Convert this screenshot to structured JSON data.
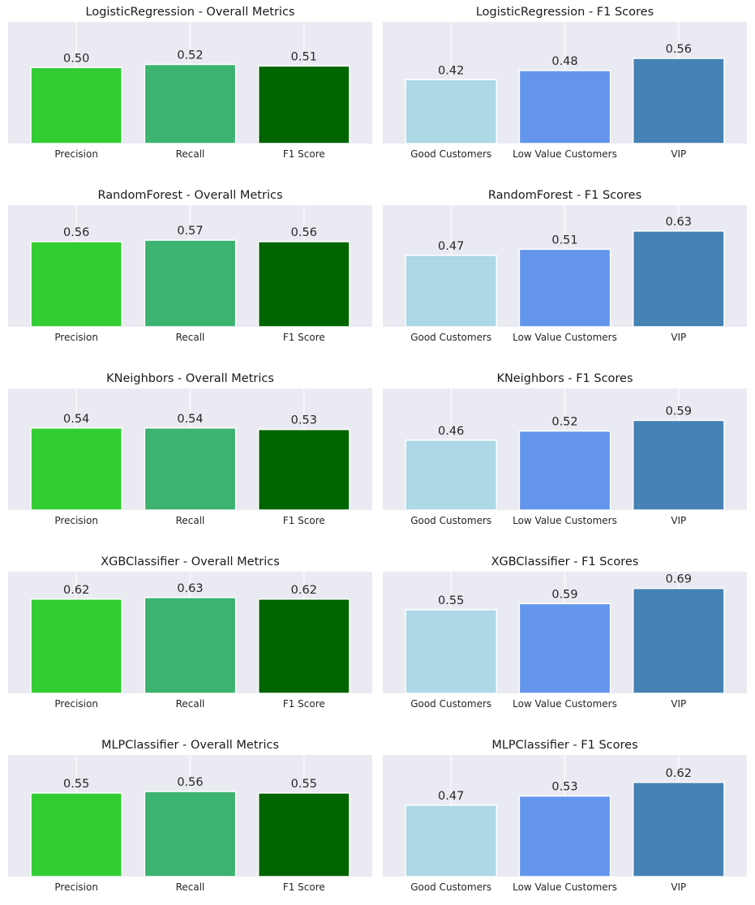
{
  "colors": {
    "plot_background": "#eaeaf2",
    "grid": "#ffffff",
    "metrics": [
      "#32cd32",
      "#3cb371",
      "#006400"
    ],
    "segments": [
      "#add8e6",
      "#6495ed",
      "#4682b4"
    ]
  },
  "chart_data": [
    {
      "type": "bar",
      "title": "LogisticRegression - Overall Metrics",
      "categories": [
        "Precision",
        "Recall",
        "F1 Score"
      ],
      "values": [
        0.5,
        0.52,
        0.51
      ],
      "value_labels": [
        "0.50",
        "0.52",
        "0.51"
      ],
      "ylim": [
        0,
        0.8
      ],
      "grid": true,
      "palette": "metrics"
    },
    {
      "type": "bar",
      "title": "LogisticRegression - F1 Scores",
      "categories": [
        "Good Customers",
        "Low Value Customers",
        "VIP"
      ],
      "values": [
        0.42,
        0.48,
        0.56
      ],
      "value_labels": [
        "0.42",
        "0.48",
        "0.56"
      ],
      "ylim": [
        0,
        0.8
      ],
      "grid": true,
      "palette": "segments"
    },
    {
      "type": "bar",
      "title": "RandomForest - Overall Metrics",
      "categories": [
        "Precision",
        "Recall",
        "F1 Score"
      ],
      "values": [
        0.56,
        0.57,
        0.56
      ],
      "value_labels": [
        "0.56",
        "0.57",
        "0.56"
      ],
      "ylim": [
        0,
        0.8
      ],
      "grid": true,
      "palette": "metrics"
    },
    {
      "type": "bar",
      "title": "RandomForest - F1 Scores",
      "categories": [
        "Good Customers",
        "Low Value Customers",
        "VIP"
      ],
      "values": [
        0.47,
        0.51,
        0.63
      ],
      "value_labels": [
        "0.47",
        "0.51",
        "0.63"
      ],
      "ylim": [
        0,
        0.8
      ],
      "grid": true,
      "palette": "segments"
    },
    {
      "type": "bar",
      "title": "KNeighbors - Overall Metrics",
      "categories": [
        "Precision",
        "Recall",
        "F1 Score"
      ],
      "values": [
        0.54,
        0.54,
        0.53
      ],
      "value_labels": [
        "0.54",
        "0.54",
        "0.53"
      ],
      "ylim": [
        0,
        0.8
      ],
      "grid": true,
      "palette": "metrics"
    },
    {
      "type": "bar",
      "title": "KNeighbors - F1 Scores",
      "categories": [
        "Good Customers",
        "Low Value Customers",
        "VIP"
      ],
      "values": [
        0.46,
        0.52,
        0.59
      ],
      "value_labels": [
        "0.46",
        "0.52",
        "0.59"
      ],
      "ylim": [
        0,
        0.8
      ],
      "grid": true,
      "palette": "segments"
    },
    {
      "type": "bar",
      "title": "XGBClassifier - Overall Metrics",
      "categories": [
        "Precision",
        "Recall",
        "F1 Score"
      ],
      "values": [
        0.62,
        0.63,
        0.62
      ],
      "value_labels": [
        "0.62",
        "0.63",
        "0.62"
      ],
      "ylim": [
        0,
        0.8
      ],
      "grid": true,
      "palette": "metrics"
    },
    {
      "type": "bar",
      "title": "XGBClassifier - F1 Scores",
      "categories": [
        "Good Customers",
        "Low Value Customers",
        "VIP"
      ],
      "values": [
        0.55,
        0.59,
        0.69
      ],
      "value_labels": [
        "0.55",
        "0.59",
        "0.69"
      ],
      "ylim": [
        0,
        0.8
      ],
      "grid": true,
      "palette": "segments"
    },
    {
      "type": "bar",
      "title": "MLPClassifier - Overall Metrics",
      "categories": [
        "Precision",
        "Recall",
        "F1 Score"
      ],
      "values": [
        0.55,
        0.56,
        0.55
      ],
      "value_labels": [
        "0.55",
        "0.56",
        "0.55"
      ],
      "ylim": [
        0,
        0.8
      ],
      "grid": true,
      "palette": "metrics"
    },
    {
      "type": "bar",
      "title": "MLPClassifier - F1 Scores",
      "categories": [
        "Good Customers",
        "Low Value Customers",
        "VIP"
      ],
      "values": [
        0.47,
        0.53,
        0.62
      ],
      "value_labels": [
        "0.47",
        "0.53",
        "0.62"
      ],
      "ylim": [
        0,
        0.8
      ],
      "grid": true,
      "palette": "segments"
    }
  ]
}
